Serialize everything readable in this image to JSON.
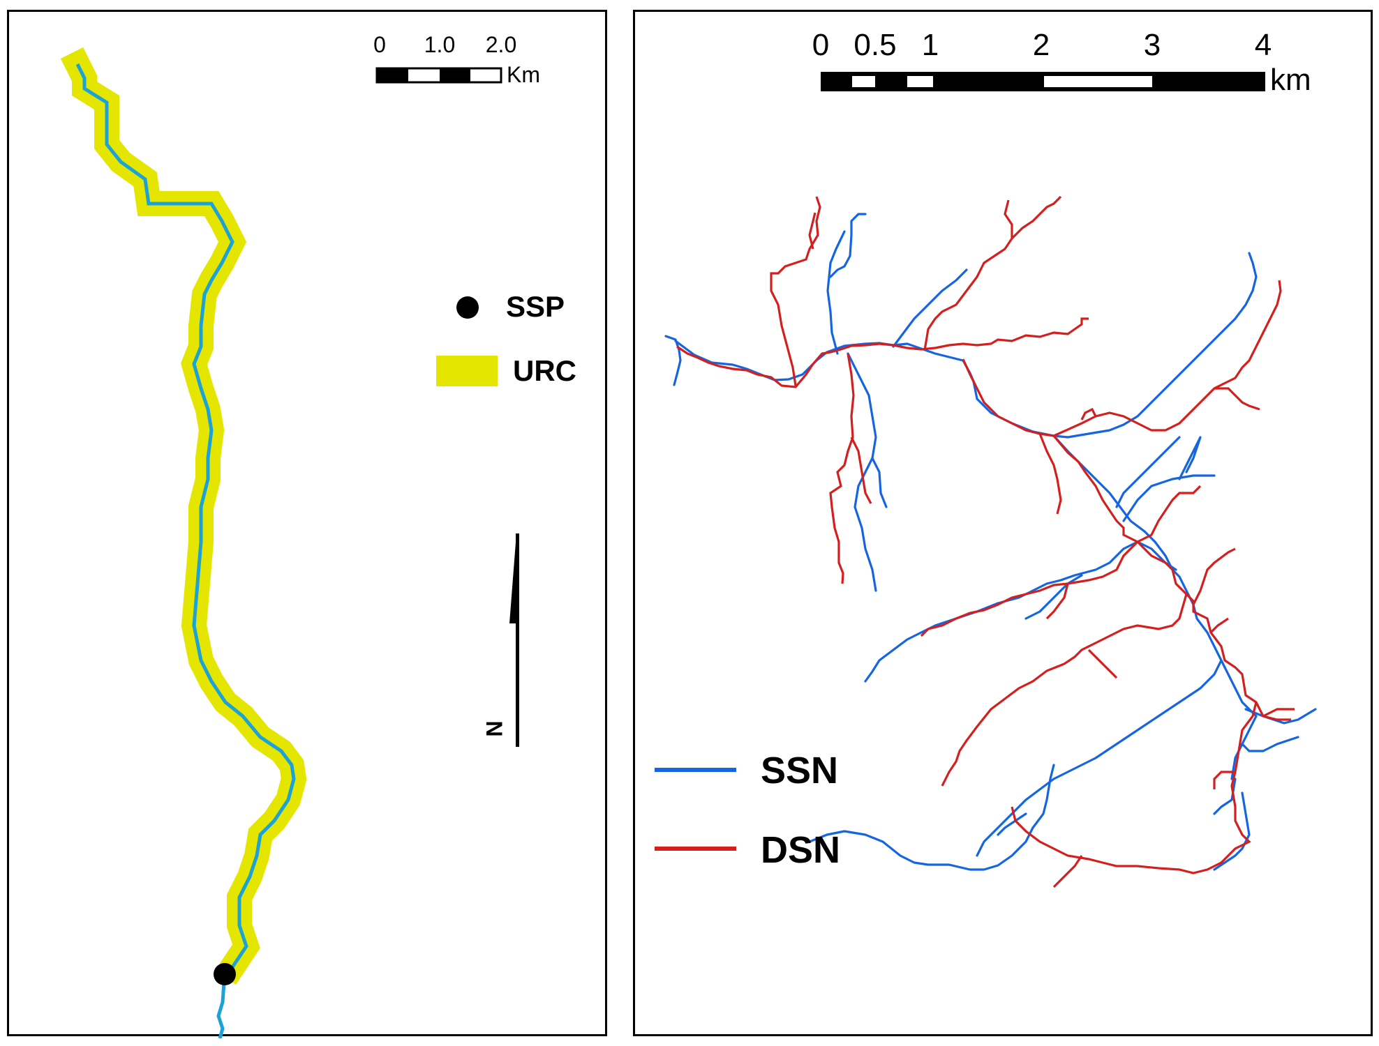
{
  "left_map": {
    "scale_bar": {
      "ticks": [
        "0",
        "1.0",
        "2.0"
      ],
      "unit": "Km"
    },
    "legend": {
      "point_label": "SSP",
      "buffer_label": "URC"
    },
    "north_arrow_label": "N",
    "colors": {
      "stream": "#1ba3d8",
      "buffer": "#e4e600",
      "point": "#000000"
    }
  },
  "right_map": {
    "scale_bar": {
      "ticks": [
        "0",
        "0.5",
        "1",
        "2",
        "3",
        "4"
      ],
      "unit": "km"
    },
    "legend": [
      {
        "label": "SSN",
        "color": "#1565e0"
      },
      {
        "label": "DSN",
        "color": "#d41f1f"
      }
    ]
  }
}
